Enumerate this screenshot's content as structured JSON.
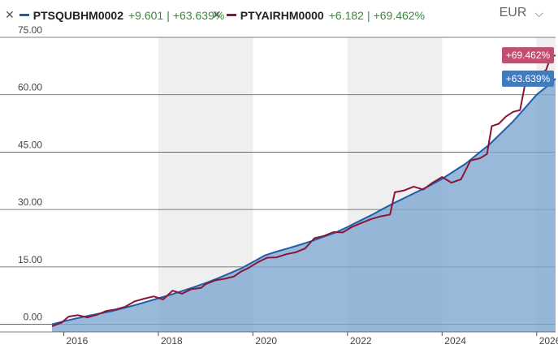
{
  "legend": [
    {
      "name": "PTSQUBHM0002",
      "value": "+9.601",
      "separator": "|",
      "pct": "+63.639%",
      "color": "#1f5ea8"
    },
    {
      "name": "PTYAIRHM0000",
      "value": "+6.182",
      "separator": "|",
      "pct": "+69.462%",
      "color": "#8a1538"
    }
  ],
  "currency": {
    "label": "EUR"
  },
  "icons": {
    "close": "close-icon",
    "chevron": "chevron-down-icon"
  },
  "chart_data": {
    "type": "line",
    "x_ticks": [
      "2016",
      "2018",
      "2020",
      "2022",
      "2024",
      "2026"
    ],
    "y_ticks": [
      "0.00",
      "15.00",
      "30.00",
      "45.00",
      "60.00",
      "75.00"
    ],
    "ylim": [
      -2,
      75
    ],
    "xlim": [
      2015.75,
      2026.4
    ],
    "grid": {
      "horizontal": true,
      "alternating_year_bands": true
    },
    "series": [
      {
        "name": "PTSQUBHM0002",
        "color": "#1f5ea8",
        "area": true,
        "area_color": "#7fa8d2",
        "end_label": "+63.639%",
        "points": [
          [
            2015.75,
            0.0
          ],
          [
            2016.0,
            0.8
          ],
          [
            2016.25,
            1.5
          ],
          [
            2016.5,
            2.2
          ],
          [
            2016.75,
            2.8
          ],
          [
            2017.0,
            3.4
          ],
          [
            2017.25,
            4.2
          ],
          [
            2017.5,
            5.0
          ],
          [
            2017.75,
            5.9
          ],
          [
            2018.0,
            6.8
          ],
          [
            2018.25,
            7.7
          ],
          [
            2018.5,
            8.7
          ],
          [
            2018.75,
            9.7
          ],
          [
            2019.0,
            10.8
          ],
          [
            2019.25,
            12.0
          ],
          [
            2019.5,
            13.3
          ],
          [
            2019.75,
            14.6
          ],
          [
            2020.0,
            16.3
          ],
          [
            2020.25,
            18.0
          ],
          [
            2020.5,
            19.0
          ],
          [
            2020.75,
            19.9
          ],
          [
            2021.0,
            20.8
          ],
          [
            2021.25,
            21.8
          ],
          [
            2021.5,
            22.9
          ],
          [
            2021.75,
            24.0
          ],
          [
            2022.0,
            25.4
          ],
          [
            2022.25,
            27.0
          ],
          [
            2022.5,
            28.5
          ],
          [
            2022.75,
            30.2
          ],
          [
            2023.0,
            31.8
          ],
          [
            2023.25,
            33.3
          ],
          [
            2023.5,
            34.8
          ],
          [
            2023.75,
            36.3
          ],
          [
            2024.0,
            38.0
          ],
          [
            2024.25,
            40.0
          ],
          [
            2024.5,
            42.0
          ],
          [
            2024.75,
            44.5
          ],
          [
            2025.0,
            47.0
          ],
          [
            2025.25,
            50.0
          ],
          [
            2025.5,
            53.0
          ],
          [
            2025.75,
            56.5
          ],
          [
            2026.0,
            60.0
          ],
          [
            2026.25,
            62.5
          ],
          [
            2026.4,
            64.2
          ]
        ]
      },
      {
        "name": "PTYAIRHM0000",
        "color": "#8a1538",
        "area": false,
        "end_label": "+69.462%",
        "points": [
          [
            2015.75,
            -0.5
          ],
          [
            2015.95,
            0.4
          ],
          [
            2016.1,
            2.0
          ],
          [
            2016.3,
            2.4
          ],
          [
            2016.5,
            1.8
          ],
          [
            2016.7,
            2.5
          ],
          [
            2016.9,
            3.5
          ],
          [
            2017.1,
            3.9
          ],
          [
            2017.3,
            4.6
          ],
          [
            2017.5,
            6.0
          ],
          [
            2017.7,
            6.7
          ],
          [
            2017.9,
            7.3
          ],
          [
            2018.1,
            6.5
          ],
          [
            2018.3,
            8.8
          ],
          [
            2018.5,
            8.0
          ],
          [
            2018.7,
            9.2
          ],
          [
            2018.9,
            9.5
          ],
          [
            2019.0,
            10.5
          ],
          [
            2019.2,
            11.5
          ],
          [
            2019.4,
            11.9
          ],
          [
            2019.6,
            12.5
          ],
          [
            2019.75,
            13.8
          ],
          [
            2019.9,
            14.7
          ],
          [
            2020.1,
            16.2
          ],
          [
            2020.3,
            17.4
          ],
          [
            2020.5,
            17.5
          ],
          [
            2020.7,
            18.3
          ],
          [
            2020.9,
            18.8
          ],
          [
            2021.1,
            19.8
          ],
          [
            2021.3,
            22.5
          ],
          [
            2021.5,
            23.1
          ],
          [
            2021.7,
            24.1
          ],
          [
            2021.9,
            24.0
          ],
          [
            2022.1,
            25.5
          ],
          [
            2022.3,
            26.5
          ],
          [
            2022.5,
            27.5
          ],
          [
            2022.7,
            28.2
          ],
          [
            2022.9,
            28.7
          ],
          [
            2023.0,
            34.5
          ],
          [
            2023.2,
            35.0
          ],
          [
            2023.4,
            36.0
          ],
          [
            2023.6,
            35.2
          ],
          [
            2023.8,
            37.0
          ],
          [
            2024.0,
            38.5
          ],
          [
            2024.2,
            37.0
          ],
          [
            2024.4,
            37.9
          ],
          [
            2024.6,
            42.8
          ],
          [
            2024.8,
            43.4
          ],
          [
            2024.95,
            44.5
          ],
          [
            2025.05,
            51.8
          ],
          [
            2025.2,
            52.4
          ],
          [
            2025.35,
            54.3
          ],
          [
            2025.5,
            55.5
          ],
          [
            2025.65,
            56.0
          ],
          [
            2025.75,
            62.5
          ],
          [
            2025.9,
            63.5
          ],
          [
            2026.05,
            65.3
          ],
          [
            2026.2,
            66.5
          ],
          [
            2026.3,
            70.0
          ],
          [
            2026.4,
            70.3
          ]
        ]
      }
    ]
  }
}
